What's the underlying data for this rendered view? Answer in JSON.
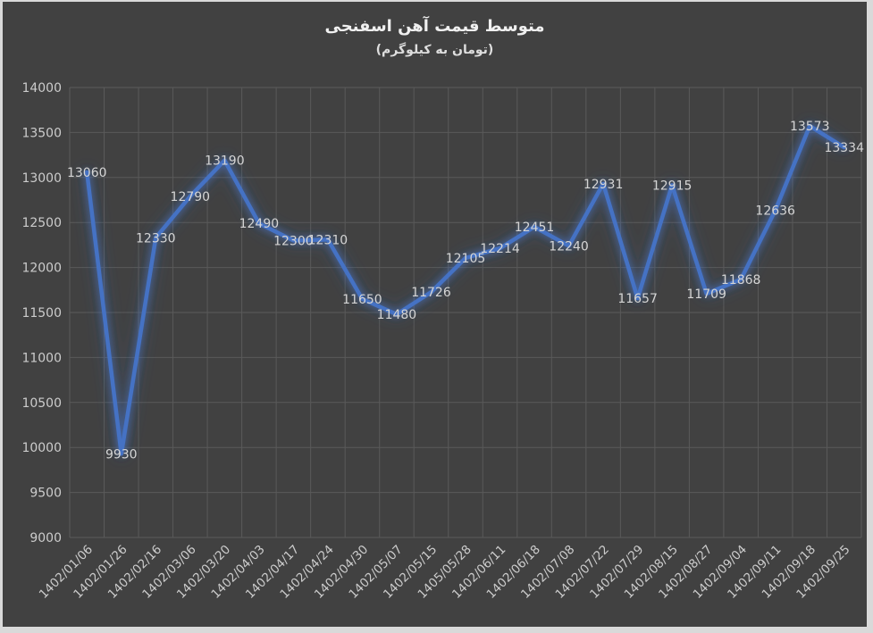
{
  "frame": {
    "outer_background": "#D9D9D9",
    "chart_background": "#414141"
  },
  "chart_data": {
    "type": "line",
    "title": "متوسط قیمت آهن اسفنجی",
    "subtitle": "(تومان به کیلوگرم)",
    "xlabel": "",
    "ylabel": "",
    "grid": true,
    "legend_position": "none",
    "ylim": [
      9000,
      14000
    ],
    "ytick_step": 500,
    "yticks": [
      14000,
      13500,
      13000,
      12500,
      12000,
      11500,
      11000,
      10500,
      10000,
      9500,
      9000
    ],
    "categories": [
      "1402/01/06",
      "1402/01/26",
      "1402/02/16",
      "1402/03/06",
      "1402/03/20",
      "1402/04/03",
      "1402/04/17",
      "1402/04/24",
      "1402/04/30",
      "1402/05/07",
      "1402/05/15",
      "1405/05/28",
      "1402/06/11",
      "1402/06/18",
      "1402/07/08",
      "1402/07/22",
      "1402/07/29",
      "1402/08/15",
      "1402/08/27",
      "1402/09/04",
      "1402/09/11",
      "1402/09/18",
      "1402/09/25"
    ],
    "values": [
      13060,
      9930,
      12330,
      12790,
      13190,
      12490,
      12300,
      12310,
      11650,
      11480,
      11726,
      12105,
      12214,
      12451,
      12240,
      12931,
      11657,
      12915,
      11709,
      11868,
      12636,
      13573,
      13334
    ],
    "data_labels": true,
    "colors": {
      "line": "#4472C4",
      "glow": "#4472C4",
      "gridline": "#5A5A5A",
      "tick_label": "#CCCCCC",
      "data_label": "#D5D5D5",
      "title": "#F0F0F0"
    }
  }
}
